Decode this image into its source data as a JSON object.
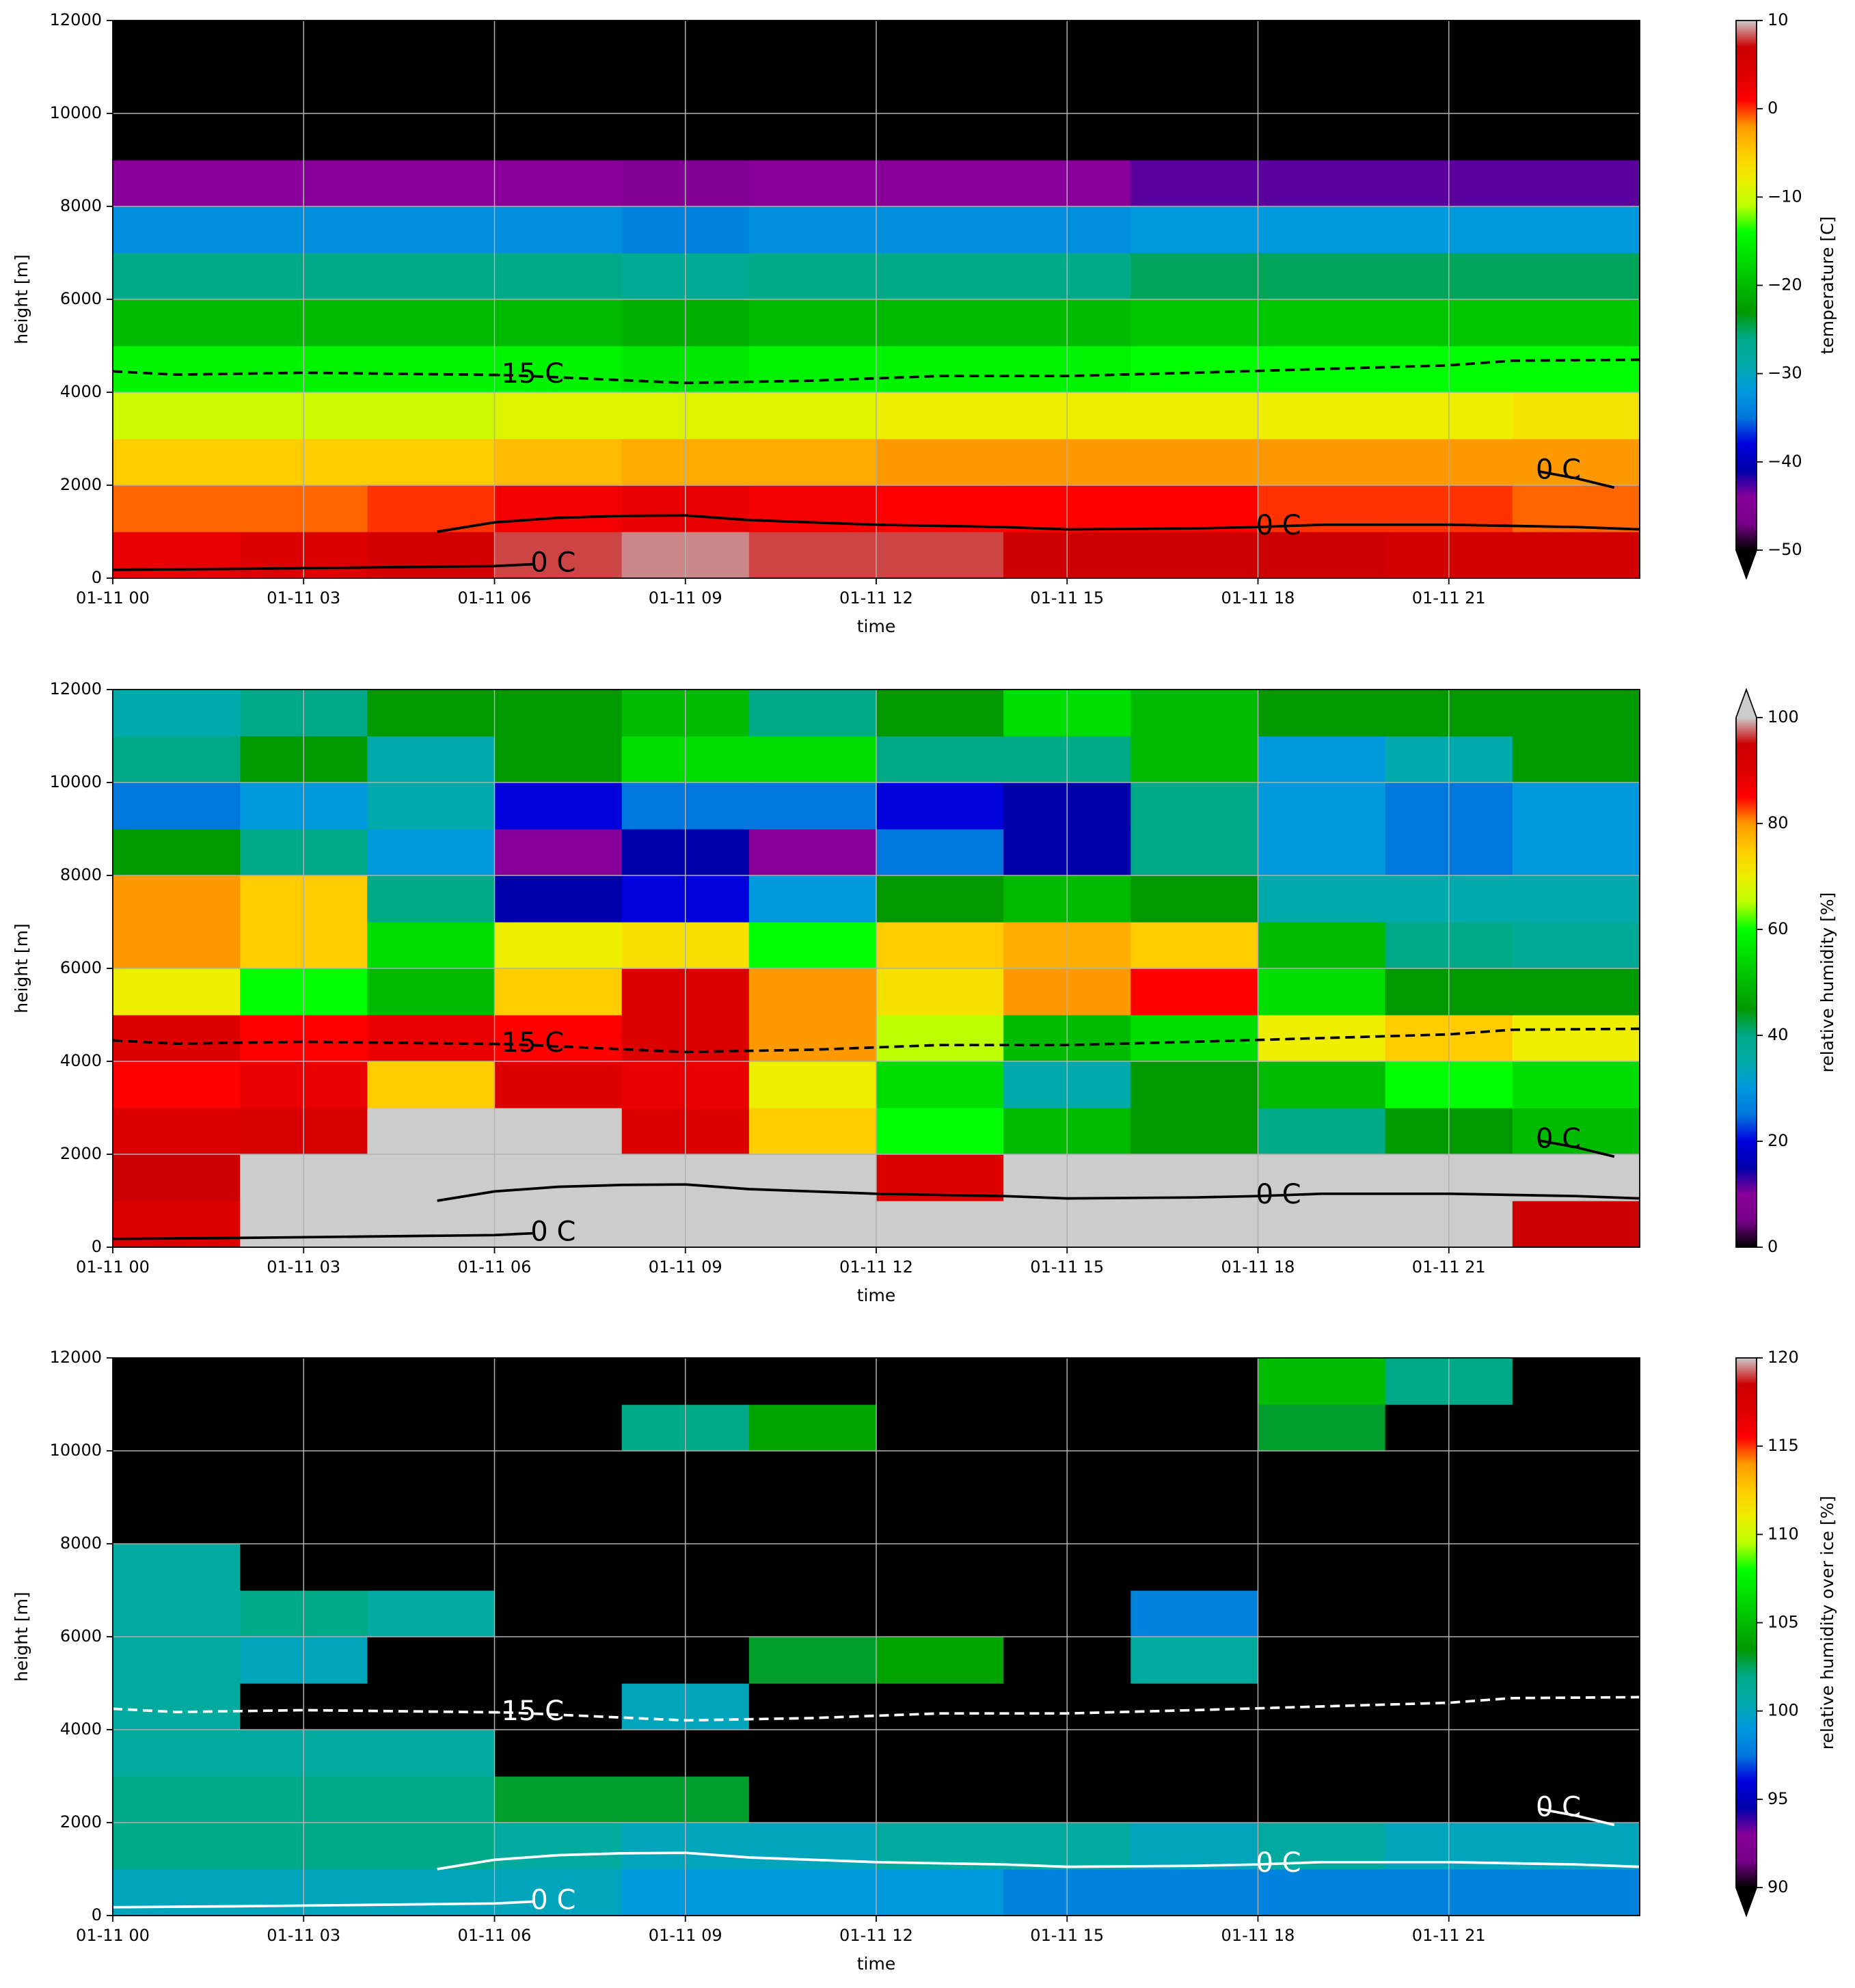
{
  "chart_data": [
    {
      "type": "heatmap",
      "xlabel": "time",
      "ylabel": "height [m]",
      "colorbar_label": "temperature [C]",
      "xlim": [
        0,
        24
      ],
      "ylim": [
        0,
        12000
      ],
      "xticks": [
        {
          "value": 0,
          "label": "01-11 00"
        },
        {
          "value": 3,
          "label": "01-11 03"
        },
        {
          "value": 6,
          "label": "01-11 06"
        },
        {
          "value": 9,
          "label": "01-11 09"
        },
        {
          "value": 12,
          "label": "01-11 12"
        },
        {
          "value": 15,
          "label": "01-11 15"
        },
        {
          "value": 18,
          "label": "01-11 18"
        },
        {
          "value": 21,
          "label": "01-11 21"
        }
      ],
      "yticks": [
        0,
        2000,
        4000,
        6000,
        8000,
        10000,
        12000
      ],
      "zlim": [
        -50,
        10
      ],
      "zticks": [
        {
          "value": -50,
          "label": "−50"
        },
        {
          "value": -40,
          "label": "−40"
        },
        {
          "value": -30,
          "label": "−30"
        },
        {
          "value": -20,
          "label": "−20"
        },
        {
          "value": -10,
          "label": "−10"
        },
        0,
        10
      ],
      "extend": "min",
      "grid": true,
      "colormap": [
        "#000000",
        "#770088",
        "#880099",
        "#0000aa",
        "#0000dd",
        "#0077dd",
        "#0099dd",
        "#00aaaa",
        "#00aa88",
        "#009900",
        "#00bb00",
        "#00dd00",
        "#00ff00",
        "#bbff00",
        "#eeee00",
        "#ffcc00",
        "#ff9900",
        "#ff0000",
        "#dd0000",
        "#cc0000",
        "#cccccc"
      ],
      "x": [
        1,
        3,
        5,
        7,
        9,
        11,
        13,
        15,
        17,
        19,
        21,
        23
      ],
      "y": [
        500,
        1500,
        2500,
        3500,
        4500,
        5500,
        6500,
        7500,
        8500,
        9500,
        10500,
        11500
      ],
      "z": [
        [
          3,
          4,
          6,
          8,
          9,
          8,
          8,
          7,
          7,
          7,
          6,
          6
        ],
        [
          -1,
          -1,
          0,
          2,
          3,
          2,
          1,
          1,
          1,
          0,
          0,
          -1
        ],
        [
          -5,
          -5,
          -5,
          -4,
          -3,
          -3,
          -2,
          -2,
          -2,
          -2,
          -2,
          -2
        ],
        [
          -10,
          -10,
          -10,
          -9,
          -9,
          -9,
          -8,
          -8,
          -8,
          -8,
          -8,
          -7
        ],
        [
          -15,
          -15,
          -15,
          -15,
          -16,
          -15,
          -15,
          -15,
          -14,
          -14,
          -14,
          -14
        ],
        [
          -20,
          -20,
          -20,
          -20,
          -21,
          -20,
          -20,
          -20,
          -19,
          -19,
          -19,
          -19
        ],
        [
          -26,
          -26,
          -26,
          -26,
          -27,
          -26,
          -26,
          -26,
          -25,
          -25,
          -25,
          -25
        ],
        [
          -33,
          -33,
          -33,
          -33,
          -34,
          -33,
          -33,
          -33,
          -32,
          -32,
          -32,
          -32
        ],
        [
          -44,
          -44,
          -44,
          -44,
          -45,
          -44,
          -44,
          -44,
          -43,
          -43,
          -43,
          -43
        ],
        [
          -58,
          -58,
          -58,
          -58,
          -58,
          -58,
          -58,
          -58,
          -58,
          -58,
          -58,
          -58
        ],
        [
          -60,
          -60,
          -60,
          -60,
          -60,
          -60,
          -60,
          -60,
          -60,
          -60,
          -60,
          -60
        ],
        [
          -60,
          -60,
          -60,
          -60,
          -60,
          -60,
          -60,
          -60,
          -60,
          -60,
          -60,
          -60
        ]
      ],
      "contours": [
        {
          "label": "-15 C",
          "color": "#000000",
          "style": "dashed",
          "x": [
            0,
            1,
            3,
            6.2,
            9,
            11,
            13,
            15,
            17,
            19,
            21,
            22,
            24
          ],
          "values": [
            4450,
            4380,
            4420,
            4370,
            4200,
            4250,
            4350,
            4350,
            4420,
            4500,
            4580,
            4680,
            4700
          ]
        },
        {
          "label": "0 C",
          "color": "#000000",
          "style": "solid",
          "x": [
            0,
            2,
            4,
            6,
            6.6,
            6.6,
            5.1,
            6,
            7,
            8,
            9,
            10,
            12,
            14,
            15,
            17,
            18,
            19,
            21,
            23,
            24,
            24,
            22.4,
            23,
            23.6
          ],
          "values": [
            180,
            200,
            230,
            260,
            300,
            null,
            1000,
            1200,
            1300,
            1340,
            1350,
            1250,
            1150,
            1100,
            1050,
            1070,
            1100,
            1150,
            1150,
            1100,
            1050,
            null,
            2300,
            2150,
            1950
          ]
        }
      ]
    },
    {
      "type": "heatmap",
      "xlabel": "time",
      "ylabel": "height [m]",
      "colorbar_label": "relative humidity [%]",
      "xlim": [
        0,
        24
      ],
      "ylim": [
        0,
        12000
      ],
      "xticks": [
        {
          "value": 0,
          "label": "01-11 00"
        },
        {
          "value": 3,
          "label": "01-11 03"
        },
        {
          "value": 6,
          "label": "01-11 06"
        },
        {
          "value": 9,
          "label": "01-11 09"
        },
        {
          "value": 12,
          "label": "01-11 12"
        },
        {
          "value": 15,
          "label": "01-11 15"
        },
        {
          "value": 18,
          "label": "01-11 18"
        },
        {
          "value": 21,
          "label": "01-11 21"
        }
      ],
      "yticks": [
        0,
        2000,
        4000,
        6000,
        8000,
        10000,
        12000
      ],
      "zlim": [
        0,
        100
      ],
      "zticks": [
        0,
        20,
        40,
        60,
        80,
        100
      ],
      "extend": "max",
      "grid": true,
      "colormap": [
        "#000000",
        "#770088",
        "#880099",
        "#0000aa",
        "#0000dd",
        "#0077dd",
        "#0099dd",
        "#00aaaa",
        "#00aa88",
        "#009900",
        "#00bb00",
        "#00dd00",
        "#00ff00",
        "#bbff00",
        "#eeee00",
        "#ffcc00",
        "#ff9900",
        "#ff0000",
        "#dd0000",
        "#cc0000",
        "#cccccc"
      ],
      "x": [
        1,
        3,
        5,
        7,
        9,
        11,
        13,
        15,
        17,
        19,
        21,
        23
      ],
      "y": [
        500,
        1500,
        2500,
        3500,
        4500,
        5500,
        6500,
        7500,
        8500,
        9500,
        10500,
        11500
      ],
      "z": [
        [
          90,
          100,
          100,
          100,
          100,
          100,
          100,
          100,
          100,
          100,
          100,
          95
        ],
        [
          95,
          100,
          100,
          100,
          100,
          100,
          90,
          100,
          100,
          100,
          100,
          100
        ],
        [
          90,
          92,
          100,
          100,
          90,
          75,
          60,
          50,
          45,
          40,
          45,
          50
        ],
        [
          85,
          88,
          75,
          90,
          88,
          70,
          55,
          35,
          45,
          50,
          60,
          55
        ],
        [
          90,
          85,
          88,
          85,
          90,
          80,
          65,
          50,
          55,
          70,
          75,
          70
        ],
        [
          70,
          60,
          50,
          75,
          90,
          80,
          72,
          80,
          85,
          55,
          45,
          45
        ],
        [
          80,
          75,
          55,
          70,
          72,
          60,
          75,
          78,
          75,
          50,
          40,
          38
        ],
        [
          80,
          75,
          40,
          15,
          20,
          30,
          45,
          50,
          45,
          35,
          35,
          35
        ],
        [
          45,
          40,
          30,
          10,
          15,
          10,
          25,
          15,
          40,
          30,
          25,
          30
        ],
        [
          25,
          30,
          35,
          20,
          25,
          25,
          20,
          15,
          40,
          30,
          25,
          30
        ],
        [
          40,
          45,
          35,
          45,
          55,
          55,
          40,
          40,
          50,
          30,
          35,
          45
        ],
        [
          35,
          40,
          45,
          45,
          50,
          40,
          45,
          55,
          50,
          45,
          45,
          45
        ]
      ],
      "contours": [
        {
          "label": "-15 C",
          "color": "#000000",
          "style": "dashed",
          "x": [
            0,
            1,
            3,
            6.2,
            9,
            11,
            13,
            15,
            17,
            19,
            21,
            22,
            24
          ],
          "values": [
            4450,
            4380,
            4420,
            4370,
            4200,
            4250,
            4350,
            4350,
            4420,
            4500,
            4580,
            4680,
            4700
          ]
        },
        {
          "label": "0 C",
          "color": "#000000",
          "style": "solid",
          "x": [
            0,
            2,
            4,
            6,
            6.6,
            6.6,
            5.1,
            6,
            7,
            8,
            9,
            10,
            12,
            14,
            15,
            17,
            18,
            19,
            21,
            23,
            24,
            24,
            22.4,
            23,
            23.6
          ],
          "values": [
            180,
            200,
            230,
            260,
            300,
            null,
            1000,
            1200,
            1300,
            1340,
            1350,
            1250,
            1150,
            1100,
            1050,
            1070,
            1100,
            1150,
            1150,
            1100,
            1050,
            null,
            2300,
            2150,
            1950
          ]
        }
      ]
    },
    {
      "type": "heatmap",
      "xlabel": "time",
      "ylabel": "height [m]",
      "colorbar_label": "relative humidity over ice [%]",
      "xlim": [
        0,
        24
      ],
      "ylim": [
        0,
        12000
      ],
      "xticks": [
        {
          "value": 0,
          "label": "01-11 00"
        },
        {
          "value": 3,
          "label": "01-11 03"
        },
        {
          "value": 6,
          "label": "01-11 06"
        },
        {
          "value": 9,
          "label": "01-11 09"
        },
        {
          "value": 12,
          "label": "01-11 12"
        },
        {
          "value": 15,
          "label": "01-11 15"
        },
        {
          "value": 18,
          "label": "01-11 18"
        },
        {
          "value": 21,
          "label": "01-11 21"
        }
      ],
      "yticks": [
        0,
        2000,
        4000,
        6000,
        8000,
        10000,
        12000
      ],
      "zlim": [
        90,
        120
      ],
      "zticks": [
        90,
        95,
        100,
        105,
        110,
        115,
        120
      ],
      "extend": "min",
      "grid": true,
      "colormap": [
        "#000000",
        "#770088",
        "#880099",
        "#0000aa",
        "#0000dd",
        "#0077dd",
        "#0099dd",
        "#00aaaa",
        "#00aa88",
        "#009900",
        "#00bb00",
        "#00dd00",
        "#00ff00",
        "#bbff00",
        "#eeee00",
        "#ffcc00",
        "#ff9900",
        "#ff0000",
        "#dd0000",
        "#cc0000",
        "#cccccc"
      ],
      "x": [
        1,
        3,
        5,
        7,
        9,
        11,
        13,
        15,
        17,
        19,
        21,
        23
      ],
      "y": [
        500,
        1500,
        2500,
        3500,
        4500,
        5500,
        6500,
        7500,
        8500,
        9500,
        10500,
        11500
      ],
      "z": [
        [
          100,
          100,
          100,
          100,
          99,
          99,
          99,
          98,
          98,
          98,
          98,
          98
        ],
        [
          102,
          102,
          102,
          101,
          100,
          100,
          101,
          101,
          100,
          101,
          100,
          100
        ],
        [
          102,
          102,
          102,
          103,
          103,
          80,
          80,
          80,
          80,
          80,
          80,
          80
        ],
        [
          101,
          101,
          101,
          80,
          80,
          80,
          80,
          80,
          80,
          80,
          80,
          80
        ],
        [
          101,
          80,
          80,
          80,
          100,
          80,
          80,
          80,
          80,
          80,
          80,
          80
        ],
        [
          101,
          100,
          80,
          80,
          80,
          103,
          104,
          80,
          101,
          80,
          80,
          80
        ],
        [
          101,
          102,
          101,
          80,
          80,
          80,
          80,
          80,
          98,
          80,
          80,
          80
        ],
        [
          101,
          80,
          80,
          80,
          80,
          80,
          80,
          80,
          80,
          80,
          80,
          80
        ],
        [
          80,
          80,
          80,
          80,
          80,
          80,
          80,
          80,
          80,
          80,
          80,
          80
        ],
        [
          80,
          80,
          80,
          80,
          80,
          80,
          80,
          80,
          80,
          80,
          80,
          80
        ],
        [
          80,
          80,
          80,
          80,
          102,
          104,
          80,
          80,
          80,
          103,
          80,
          80
        ],
        [
          80,
          80,
          80,
          80,
          80,
          80,
          80,
          80,
          80,
          105,
          102,
          80
        ]
      ],
      "contours": [
        {
          "label": "-15 C",
          "color": "#ffffff",
          "style": "dashed",
          "x": [
            0,
            1,
            3,
            6.2,
            9,
            11,
            13,
            15,
            17,
            19,
            21,
            22,
            24
          ],
          "values": [
            4450,
            4380,
            4420,
            4370,
            4200,
            4250,
            4350,
            4350,
            4420,
            4500,
            4580,
            4680,
            4700
          ]
        },
        {
          "label": "0 C",
          "color": "#ffffff",
          "style": "solid",
          "x": [
            0,
            2,
            4,
            6,
            6.6,
            6.6,
            5.1,
            6,
            7,
            8,
            9,
            10,
            12,
            14,
            15,
            17,
            18,
            19,
            21,
            23,
            24,
            24,
            22.4,
            23,
            23.6
          ],
          "values": [
            180,
            200,
            230,
            260,
            300,
            null,
            1000,
            1200,
            1300,
            1340,
            1350,
            1250,
            1150,
            1100,
            1050,
            1070,
            1100,
            1150,
            1150,
            1100,
            1050,
            null,
            2300,
            2150,
            1950
          ]
        }
      ]
    }
  ]
}
